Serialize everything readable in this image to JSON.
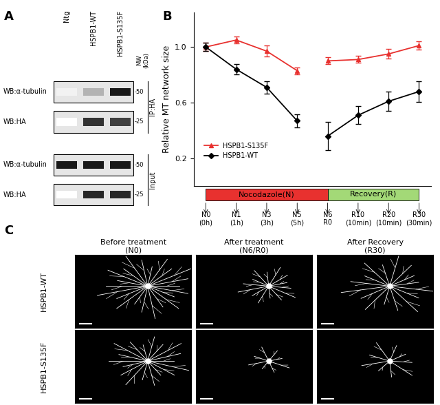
{
  "panel_labels": [
    "A",
    "B",
    "C"
  ],
  "blot": {
    "lanes": [
      "Ntg",
      "HSPB1-WT",
      "HSPB1-S135F"
    ],
    "mw_label": "MW\n(kDa)",
    "groups": [
      {
        "label": "IP:HA",
        "rows": [
          {
            "label": "WB:α-tubulin",
            "mw": "-50",
            "bands": [
              0.05,
              0.3,
              0.9
            ]
          },
          {
            "label": "WB:HA",
            "mw": "-25",
            "bands": [
              0.0,
              0.8,
              0.75
            ]
          }
        ]
      },
      {
        "label": "Input",
        "rows": [
          {
            "label": "WB:α-tubulin",
            "mw": "-50",
            "bands": [
              0.9,
              0.9,
              0.9
            ]
          },
          {
            "label": "WB:HA",
            "mw": "-25",
            "bands": [
              0.0,
              0.85,
              0.85
            ]
          }
        ]
      }
    ]
  },
  "chart_data": {
    "type": "line",
    "ylabel": "Relative MT network size",
    "categories": [
      "N0\n(0h)",
      "N1\n(1h)",
      "N3\n(3h)",
      "N5\n(5h)",
      "N6\nR0",
      "R10\n(10min)",
      "R20\n(10min)",
      "R30\n(30min)"
    ],
    "series": [
      {
        "name": "HSPB1-S135F",
        "color": "#e8312f",
        "marker": "^",
        "values": [
          1.0,
          1.05,
          0.97,
          0.83,
          0.9,
          0.91,
          0.95,
          1.01
        ],
        "errors": [
          0.03,
          0.025,
          0.04,
          0.025,
          0.025,
          0.025,
          0.035,
          0.03
        ]
      },
      {
        "name": "HSPB1-WT",
        "color": "#000000",
        "marker": "D",
        "values": [
          1.0,
          0.84,
          0.71,
          0.47,
          0.36,
          0.51,
          0.61,
          0.68
        ],
        "errors": [
          0.03,
          0.035,
          0.045,
          0.045,
          0.1,
          0.065,
          0.07,
          0.075
        ]
      }
    ],
    "phases": [
      {
        "label": "Nocodazole(N)",
        "color": "#e8312f",
        "from": 0,
        "to": 4
      },
      {
        "label": "Recovery(R)",
        "color": "#a3d977",
        "from": 4,
        "to": 7
      }
    ],
    "ylim": [
      0,
      1.25
    ],
    "yticks": [
      0.2,
      0.6,
      1.0
    ],
    "legend": "lower left"
  },
  "images": {
    "columns": [
      "Before treatment\n(N0)",
      "After treatment\n(N6/R0)",
      "After Recovery\n(R30)"
    ],
    "rows": [
      "HSPB1-WT",
      "HSPB1-S135F"
    ]
  }
}
